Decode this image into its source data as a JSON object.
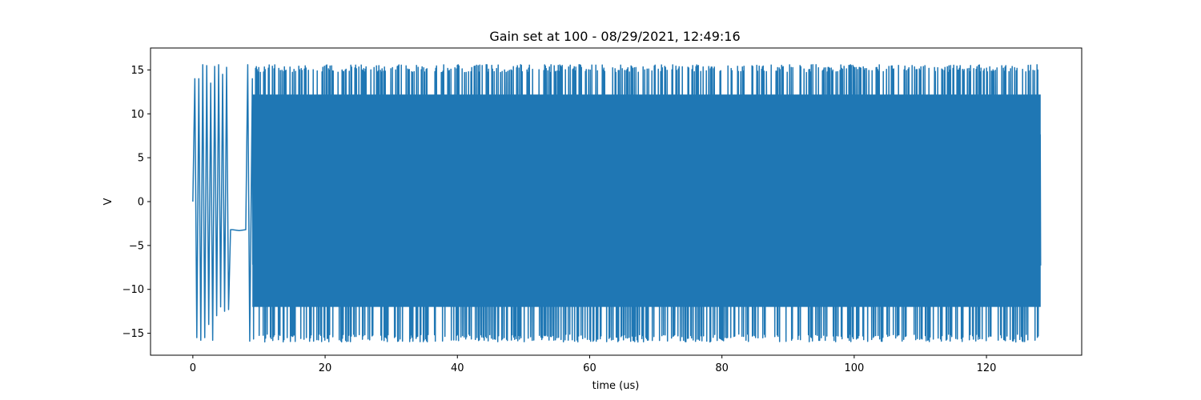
{
  "chart_data": {
    "type": "line",
    "title": "Gain set at 100 - 08/29/2021, 12:49:16",
    "xlabel": "time (us)",
    "ylabel": "V",
    "xlim": [
      -6.4,
      134.4
    ],
    "ylim": [
      -17.5,
      17.5
    ],
    "x_ticks": [
      0,
      20,
      40,
      60,
      80,
      100,
      120
    ],
    "y_ticks": [
      -15,
      -10,
      -5,
      0,
      5,
      10,
      15
    ],
    "x_tick_labels": [
      "0",
      "20",
      "40",
      "60",
      "80",
      "100",
      "120"
    ],
    "y_tick_labels": [
      "−15",
      "−10",
      "−5",
      "0",
      "5",
      "10",
      "15"
    ],
    "grid": false,
    "legend": "none",
    "series": [
      {
        "color": "#1f77b4",
        "x": [
          0,
          0.3,
          0.6,
          0.9,
          1.2,
          1.5,
          1.8,
          2.1,
          2.4,
          2.7,
          3.0,
          3.3,
          3.6,
          3.9,
          4.2,
          4.5,
          4.8,
          5.1,
          5.4,
          5.7,
          6.0,
          7.0,
          8.0,
          8.3,
          8.6,
          9.0
        ],
        "y": [
          0,
          14,
          -15.5,
          14,
          -15.8,
          15.6,
          -15.5,
          15.5,
          -14,
          13.5,
          -15.8,
          15.4,
          -13,
          15.6,
          -12,
          14.5,
          -12.5,
          15.3,
          -12.3,
          -3.2,
          -3.2,
          -3.3,
          -3.2,
          15.6,
          -15.9,
          14.0
        ]
      }
    ],
    "dense_region": {
      "x_range": [
        9,
        128.2
      ],
      "y_envelope": [
        -16.0,
        15.6
      ],
      "note_points": []
    }
  }
}
